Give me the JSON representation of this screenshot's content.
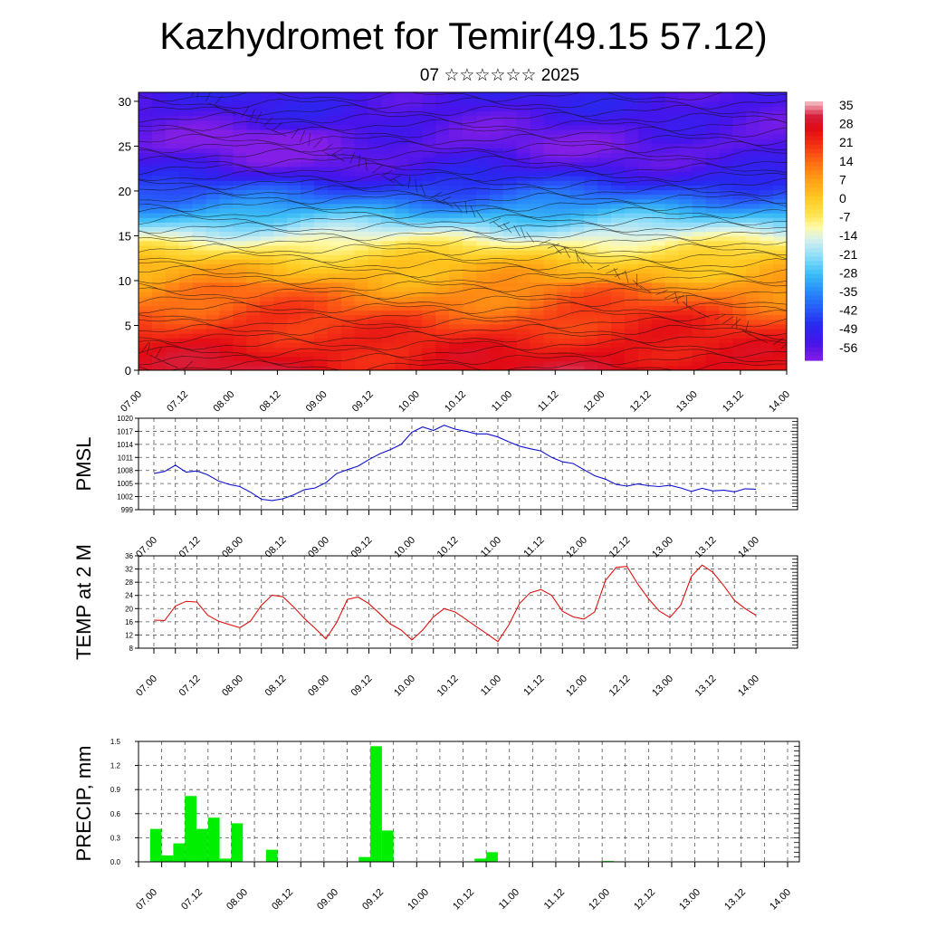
{
  "title": "Kazhydromet for Temir(49.15 57.12)",
  "subtitle": "07 ☆☆☆☆☆☆ 2025",
  "colors": {
    "pmsl_line": "#1010d0",
    "temp_line": "#e01010",
    "precip_bar": "#00ee00",
    "axis": "#000000"
  },
  "chart_data": [
    {
      "type": "heatmap",
      "title": "",
      "xlabel": "",
      "ylabel": "",
      "x_ticks": [
        "07.00",
        "07.12",
        "08.00",
        "08.12",
        "09.00",
        "09.12",
        "10.00",
        "10.12",
        "11.00",
        "11.12",
        "12.00",
        "12.12",
        "13.00",
        "13.12",
        "14.00"
      ],
      "y_ticks": [
        0,
        5,
        10,
        15,
        20,
        25,
        30
      ],
      "ylim": [
        0,
        31
      ],
      "colorbar": {
        "labels": [
          "35",
          "28",
          "21",
          "14",
          "7",
          "0",
          "-7",
          "-14",
          "-21",
          "-28",
          "-35",
          "-42",
          "-49",
          "-56"
        ],
        "range": [
          -63,
          42
        ]
      },
      "temperature_profile": [
        {
          "level": 0,
          "value": 30
        },
        {
          "level": 3,
          "value": 26
        },
        {
          "level": 6,
          "value": 20
        },
        {
          "level": 9,
          "value": 12
        },
        {
          "level": 12,
          "value": 4
        },
        {
          "level": 14,
          "value": -6
        },
        {
          "level": 15.5,
          "value": -16
        },
        {
          "level": 17,
          "value": -26
        },
        {
          "level": 19,
          "value": -38
        },
        {
          "level": 21,
          "value": -48
        },
        {
          "level": 23,
          "value": -56
        },
        {
          "level": 25,
          "value": -60
        },
        {
          "level": 27,
          "value": -58
        },
        {
          "level": 29,
          "value": -55
        },
        {
          "level": 31,
          "value": -54
        }
      ]
    },
    {
      "type": "line",
      "ylabel": "PMSL",
      "ylim": [
        999,
        1020
      ],
      "y_ticks": [
        999,
        1002,
        1005,
        1008,
        1011,
        1014,
        1017,
        1020
      ],
      "x_ticks": [
        "07.00",
        "07.12",
        "08.00",
        "08.12",
        "09.00",
        "09.12",
        "10.00",
        "10.12",
        "11.00",
        "11.12",
        "12.00",
        "12.12",
        "13.00",
        "13.12",
        "14.00"
      ],
      "x": [
        0,
        3,
        6,
        9,
        12,
        15,
        18,
        21,
        24,
        27,
        30,
        33,
        36,
        39,
        42,
        45,
        48,
        51,
        54,
        57,
        60,
        63,
        66,
        69,
        72,
        75,
        78,
        81,
        84,
        87,
        90,
        93,
        96,
        99,
        102,
        105,
        108,
        111,
        114,
        117,
        120,
        123,
        126,
        129,
        132,
        135,
        138,
        141,
        144,
        147,
        150,
        153,
        156,
        159,
        162,
        165,
        168
      ],
      "series": [
        {
          "values": [
            1007.3,
            1007.8,
            1009.2,
            1007.6,
            1007.9,
            1007.0,
            1005.6,
            1004.8,
            1004.3,
            1003.0,
            1001.4,
            1001.1,
            1001.5,
            1002.4,
            1003.6,
            1004.0,
            1005.2,
            1007.3,
            1008.2,
            1009.0,
            1010.5,
            1011.8,
            1012.8,
            1014.0,
            1016.8,
            1018.0,
            1017.2,
            1018.4,
            1017.5,
            1017.0,
            1016.4,
            1016.4,
            1015.7,
            1014.6,
            1013.6,
            1013.0,
            1012.5,
            1011.0,
            1010.0,
            1009.6,
            1008.2,
            1006.8,
            1006.0,
            1004.8,
            1004.4,
            1004.9,
            1004.5,
            1004.3,
            1004.6,
            1004.0,
            1003.2,
            1003.9,
            1003.3,
            1003.5,
            1003.1,
            1003.8,
            1003.7
          ]
        }
      ]
    },
    {
      "type": "line",
      "ylabel": "TEMP at 2 M",
      "ylim": [
        8,
        36
      ],
      "y_ticks": [
        8,
        12,
        16,
        20,
        24,
        28,
        32,
        36
      ],
      "x_ticks": [
        "07.00",
        "07.12",
        "08.00",
        "08.12",
        "09.00",
        "09.12",
        "10.00",
        "10.12",
        "11.00",
        "11.12",
        "12.00",
        "12.12",
        "13.00",
        "13.12",
        "14.00"
      ],
      "x": [
        0,
        3,
        6,
        9,
        12,
        15,
        18,
        21,
        24,
        27,
        30,
        33,
        36,
        39,
        42,
        45,
        48,
        51,
        54,
        57,
        60,
        63,
        66,
        69,
        72,
        75,
        78,
        81,
        84,
        87,
        90,
        93,
        96,
        99,
        102,
        105,
        108,
        111,
        114,
        117,
        120,
        123,
        126,
        129,
        132,
        135,
        138,
        141,
        144,
        147,
        150,
        153,
        156,
        159,
        162,
        165,
        168
      ],
      "series": [
        {
          "values": [
            16.5,
            16.4,
            20.8,
            22.2,
            22.0,
            18.0,
            16.2,
            15.2,
            14.2,
            16.3,
            21.0,
            24.1,
            23.6,
            20.5,
            17.0,
            14.0,
            10.8,
            15.8,
            22.8,
            23.5,
            21.5,
            18.5,
            15.3,
            13.5,
            10.5,
            13.5,
            17.5,
            20.0,
            19.0,
            16.8,
            14.5,
            12.3,
            10.0,
            15.0,
            21.5,
            24.8,
            25.8,
            24.0,
            19.2,
            17.5,
            16.8,
            19.0,
            28.5,
            32.5,
            32.8,
            27.5,
            23.0,
            19.3,
            17.3,
            21.0,
            29.8,
            33.2,
            31.0,
            27.0,
            22.5,
            20.0,
            18.0
          ]
        }
      ]
    },
    {
      "type": "bar",
      "ylabel": "PRECIP, mm",
      "ylim": [
        0,
        1.5
      ],
      "y_ticks": [
        "0.0",
        "0.3",
        "0.6",
        "0.9",
        "1.2",
        "1.5"
      ],
      "x_ticks": [
        "07.00",
        "07.12",
        "08.00",
        "08.12",
        "09.00",
        "09.12",
        "10.00",
        "10.12",
        "11.00",
        "11.12",
        "12.00",
        "12.12",
        "13.00",
        "13.12",
        "14.00"
      ],
      "bar_start_hours": [
        3,
        6,
        9,
        12,
        15,
        18,
        21,
        24,
        33,
        57,
        60,
        63,
        87,
        90,
        120
      ],
      "values": [
        0.41,
        0.08,
        0.23,
        0.82,
        0.41,
        0.55,
        0.04,
        0.48,
        0.15,
        0.06,
        1.44,
        0.39,
        0.04,
        0.12,
        0.01
      ]
    }
  ]
}
